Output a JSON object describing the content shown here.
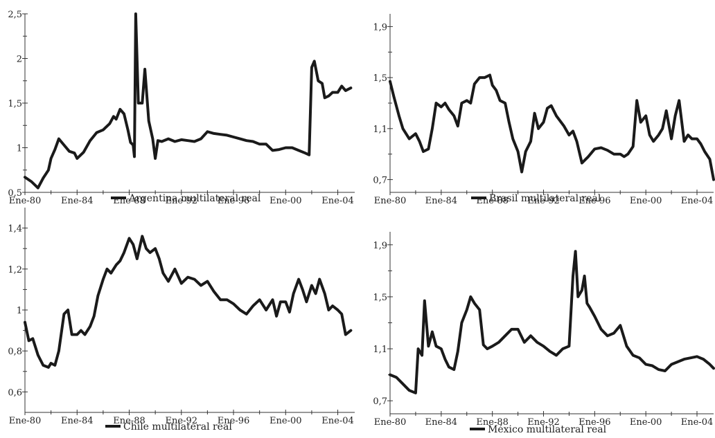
{
  "chart_data": [
    {
      "type": "line",
      "legend": "Argentina multilateral real",
      "xlim": [
        1980,
        2005.3
      ],
      "ylim": [
        0.5,
        2.5
      ],
      "x_ticks": [
        "Ene-80",
        "Ene-84",
        "Ene-88",
        "Ene-92",
        "Ene-96",
        "Ene-00",
        "Ene-04"
      ],
      "y_ticks": [
        "0,5",
        "1",
        "1,5",
        "2",
        "2,5"
      ],
      "y_tick_values": [
        0.5,
        1,
        1.5,
        2,
        2.5
      ],
      "series": [
        {
          "x": [
            1980,
            1980.5,
            1981,
            1981.4,
            1981.8,
            1982,
            1982.3,
            1982.6,
            1983,
            1983.4,
            1983.8,
            1984,
            1984.5,
            1985,
            1985.5,
            1986,
            1986.5,
            1986.8,
            1987,
            1987.3,
            1987.6,
            1987.9,
            1988.1,
            1988.3,
            1988.4,
            1988.5,
            1988.7,
            1989,
            1989.2,
            1989.5,
            1989.8,
            1990,
            1990.2,
            1990.5,
            1991,
            1991.5,
            1992,
            1992.5,
            1993,
            1993.5,
            1994,
            1994.5,
            1995,
            1995.5,
            1996,
            1996.5,
            1997,
            1997.5,
            1998,
            1998.5,
            1999,
            1999.5,
            2000,
            2000.5,
            2001,
            2001.5,
            2001.8,
            2002,
            2002.2,
            2002.5,
            2002.8,
            2003,
            2003.3,
            2003.6,
            2004,
            2004.3,
            2004.6,
            2005
          ],
          "y": [
            0.67,
            0.62,
            0.55,
            0.66,
            0.75,
            0.88,
            0.98,
            1.1,
            1.03,
            0.96,
            0.94,
            0.88,
            0.95,
            1.08,
            1.17,
            1.2,
            1.27,
            1.35,
            1.32,
            1.43,
            1.38,
            1.2,
            1.06,
            1.03,
            0.9,
            2.5,
            1.5,
            1.5,
            1.88,
            1.3,
            1.1,
            0.88,
            1.08,
            1.07,
            1.1,
            1.07,
            1.09,
            1.08,
            1.07,
            1.1,
            1.18,
            1.16,
            1.15,
            1.14,
            1.12,
            1.1,
            1.08,
            1.07,
            1.04,
            1.04,
            0.97,
            0.98,
            1.0,
            1.0,
            0.97,
            0.94,
            0.92,
            1.9,
            1.97,
            1.75,
            1.72,
            1.56,
            1.58,
            1.62,
            1.62,
            1.69,
            1.64,
            1.67
          ]
        }
      ]
    },
    {
      "type": "line",
      "legend": "Brasil multilateral real",
      "xlim": [
        1980,
        2005.3
      ],
      "ylim": [
        0.6,
        2.0
      ],
      "x_ticks": [
        "Ene-80",
        "Ene-84",
        "Ene-88",
        "Ene-92",
        "Ene-96",
        "Ene-00",
        "Ene-04"
      ],
      "y_ticks": [
        "0,7",
        "1,1",
        "1,5",
        "1,9"
      ],
      "y_tick_values": [
        0.7,
        1.1,
        1.5,
        1.9
      ],
      "series": [
        {
          "x": [
            1980,
            1980.3,
            1980.7,
            1981,
            1981.5,
            1982,
            1982.3,
            1982.6,
            1983,
            1983.3,
            1983.6,
            1984,
            1984.3,
            1984.6,
            1985,
            1985.3,
            1985.6,
            1986,
            1986.3,
            1986.6,
            1987,
            1987.4,
            1987.8,
            1988,
            1988.3,
            1988.6,
            1989,
            1989.3,
            1989.6,
            1990,
            1990.3,
            1990.6,
            1991,
            1991.3,
            1991.6,
            1992,
            1992.3,
            1992.6,
            1993,
            1993.3,
            1993.6,
            1994,
            1994.3,
            1994.6,
            1995,
            1995.5,
            1996,
            1996.5,
            1997,
            1997.5,
            1998,
            1998.3,
            1998.6,
            1999,
            1999.3,
            1999.6,
            2000,
            2000.3,
            2000.6,
            2001,
            2001.3,
            2001.6,
            2002,
            2002.3,
            2002.6,
            2003,
            2003.3,
            2003.6,
            2004,
            2004.3,
            2004.6,
            2005,
            2005.3
          ],
          "y": [
            1.47,
            1.35,
            1.2,
            1.1,
            1.02,
            1.06,
            1.0,
            0.92,
            0.94,
            1.1,
            1.3,
            1.27,
            1.3,
            1.25,
            1.2,
            1.12,
            1.3,
            1.32,
            1.3,
            1.45,
            1.5,
            1.5,
            1.52,
            1.44,
            1.4,
            1.32,
            1.3,
            1.15,
            1.02,
            0.92,
            0.76,
            0.92,
            1.0,
            1.22,
            1.1,
            1.15,
            1.26,
            1.28,
            1.2,
            1.16,
            1.12,
            1.05,
            1.08,
            1.0,
            0.83,
            0.88,
            0.94,
            0.95,
            0.93,
            0.9,
            0.9,
            0.88,
            0.9,
            0.96,
            1.32,
            1.15,
            1.2,
            1.05,
            1.0,
            1.05,
            1.1,
            1.24,
            1.02,
            1.2,
            1.32,
            1.0,
            1.05,
            1.02,
            1.02,
            0.98,
            0.92,
            0.86,
            0.7
          ]
        }
      ]
    },
    {
      "type": "line",
      "legend": "Chile multilateral real",
      "xlim": [
        1980,
        2005.3
      ],
      "ylim": [
        0.5,
        1.5
      ],
      "x_ticks": [
        "Ene-80",
        "Ene-84",
        "Ene-88",
        "Ene-92",
        "Ene-96",
        "Ene-00",
        "Ene-04"
      ],
      "y_ticks": [
        "0,6",
        "0,8",
        "1",
        "1,2",
        "1,4"
      ],
      "y_tick_values": [
        0.6,
        0.8,
        1.0,
        1.2,
        1.4
      ],
      "series": [
        {
          "x": [
            1980,
            1980.3,
            1980.6,
            1981,
            1981.4,
            1981.8,
            1982,
            1982.3,
            1982.6,
            1983,
            1983.3,
            1983.6,
            1984,
            1984.3,
            1984.6,
            1985,
            1985.3,
            1985.6,
            1986,
            1986.3,
            1986.6,
            1987,
            1987.3,
            1987.6,
            1988,
            1988.3,
            1988.6,
            1989,
            1989.3,
            1989.6,
            1990,
            1990.3,
            1990.6,
            1991,
            1991.5,
            1992,
            1992.5,
            1993,
            1993.5,
            1994,
            1994.5,
            1995,
            1995.5,
            1996,
            1996.5,
            1997,
            1997.5,
            1998,
            1998.5,
            1999,
            1999.3,
            1999.6,
            2000,
            2000.3,
            2000.6,
            2001,
            2001.3,
            2001.6,
            2002,
            2002.3,
            2002.6,
            2003,
            2003.3,
            2003.6,
            2004,
            2004.3,
            2004.6,
            2005
          ],
          "y": [
            0.94,
            0.85,
            0.86,
            0.78,
            0.73,
            0.72,
            0.74,
            0.73,
            0.8,
            0.98,
            1.0,
            0.88,
            0.88,
            0.9,
            0.88,
            0.92,
            0.97,
            1.07,
            1.15,
            1.2,
            1.18,
            1.22,
            1.24,
            1.28,
            1.35,
            1.32,
            1.25,
            1.36,
            1.3,
            1.28,
            1.3,
            1.25,
            1.18,
            1.14,
            1.2,
            1.13,
            1.16,
            1.15,
            1.12,
            1.14,
            1.09,
            1.05,
            1.05,
            1.03,
            1.0,
            0.98,
            1.02,
            1.05,
            1.0,
            1.05,
            0.97,
            1.04,
            1.04,
            0.99,
            1.08,
            1.15,
            1.1,
            1.04,
            1.12,
            1.08,
            1.15,
            1.08,
            1.0,
            1.02,
            1.0,
            0.98,
            0.88,
            0.9
          ]
        }
      ]
    },
    {
      "type": "line",
      "legend": "México multilateral real",
      "xlim": [
        1980,
        2005.3
      ],
      "ylim": [
        0.6,
        2.0
      ],
      "x_ticks": [
        "Ene-80",
        "Ene-84",
        "Ene-88",
        "Ene-92",
        "Ene-96",
        "Ene-00",
        "Ene-04"
      ],
      "y_ticks": [
        "0,7",
        "1,1",
        "1,5",
        "1,9"
      ],
      "y_tick_values": [
        0.7,
        1.1,
        1.5,
        1.9
      ],
      "series": [
        {
          "x": [
            1980,
            1980.5,
            1981,
            1981.5,
            1982,
            1982.2,
            1982.5,
            1982.7,
            1983,
            1983.3,
            1983.6,
            1984,
            1984.3,
            1984.6,
            1985,
            1985.3,
            1985.6,
            1986,
            1986.3,
            1986.6,
            1987,
            1987.3,
            1987.6,
            1988,
            1988.5,
            1989,
            1989.5,
            1990,
            1990.5,
            1991,
            1991.5,
            1992,
            1992.5,
            1993,
            1993.5,
            1994,
            1994.3,
            1994.5,
            1994.7,
            1995,
            1995.2,
            1995.4,
            1995.6,
            1996,
            1996.5,
            1997,
            1997.5,
            1998,
            1998.5,
            1999,
            1999.5,
            2000,
            2000.5,
            2001,
            2001.5,
            2002,
            2002.5,
            2003,
            2003.5,
            2004,
            2004.5,
            2005,
            2005.3
          ],
          "y": [
            0.9,
            0.88,
            0.83,
            0.78,
            0.76,
            1.1,
            1.05,
            1.47,
            1.12,
            1.23,
            1.12,
            1.1,
            1.02,
            0.96,
            0.94,
            1.08,
            1.3,
            1.4,
            1.5,
            1.45,
            1.4,
            1.13,
            1.1,
            1.12,
            1.15,
            1.2,
            1.25,
            1.25,
            1.15,
            1.2,
            1.15,
            1.12,
            1.08,
            1.05,
            1.1,
            1.12,
            1.66,
            1.85,
            1.5,
            1.55,
            1.66,
            1.45,
            1.42,
            1.35,
            1.25,
            1.2,
            1.22,
            1.28,
            1.12,
            1.05,
            1.03,
            0.98,
            0.97,
            0.94,
            0.93,
            0.98,
            1.0,
            1.02,
            1.03,
            1.04,
            1.02,
            0.98,
            0.95
          ]
        }
      ]
    }
  ]
}
